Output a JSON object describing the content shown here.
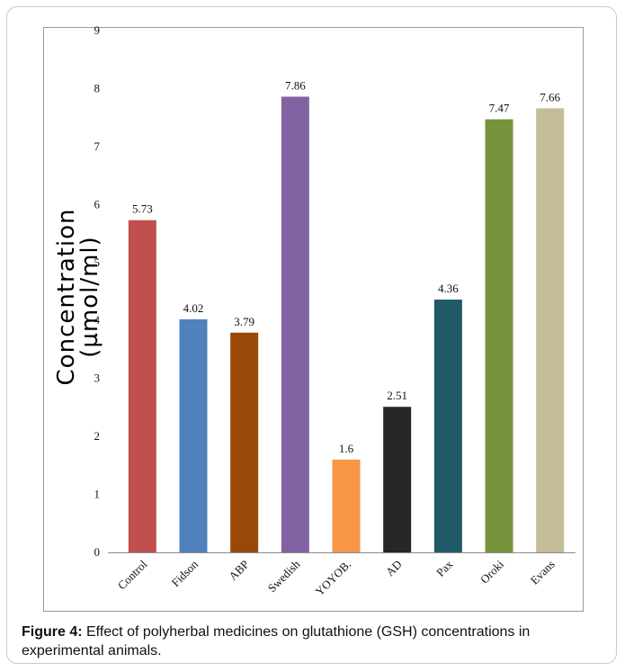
{
  "caption": {
    "label": "Figure 4:",
    "text": " Effect of polyherbal medicines on glutathione (GSH) concentrations in experimental animals."
  },
  "chart_data": {
    "type": "bar",
    "categories": [
      "Control",
      "Fidson",
      "ABP",
      "Swedish",
      "YOYOB.",
      "AD",
      "Pax",
      "Oroki",
      "Evans"
    ],
    "values": [
      5.73,
      4.02,
      3.79,
      7.86,
      1.6,
      2.51,
      4.36,
      7.47,
      7.66
    ],
    "data_labels": [
      "5.73",
      "4.02",
      "3.79",
      "7.86",
      "1.6",
      "2.51",
      "4.36",
      "7.47",
      "7.66"
    ],
    "colors": [
      "#c0504d",
      "#4f81bd",
      "#984807",
      "#8064a2",
      "#f79646",
      "#262626",
      "#215968",
      "#77933c",
      "#c4bd97"
    ],
    "ylabel_line1": "Concentration",
    "ylabel_line2": "(µmol/ml)",
    "ylim": [
      0,
      9
    ],
    "yticks": [
      0,
      1,
      2,
      3,
      4,
      5,
      6,
      7,
      8,
      9
    ],
    "grid": false,
    "legend": "none"
  }
}
